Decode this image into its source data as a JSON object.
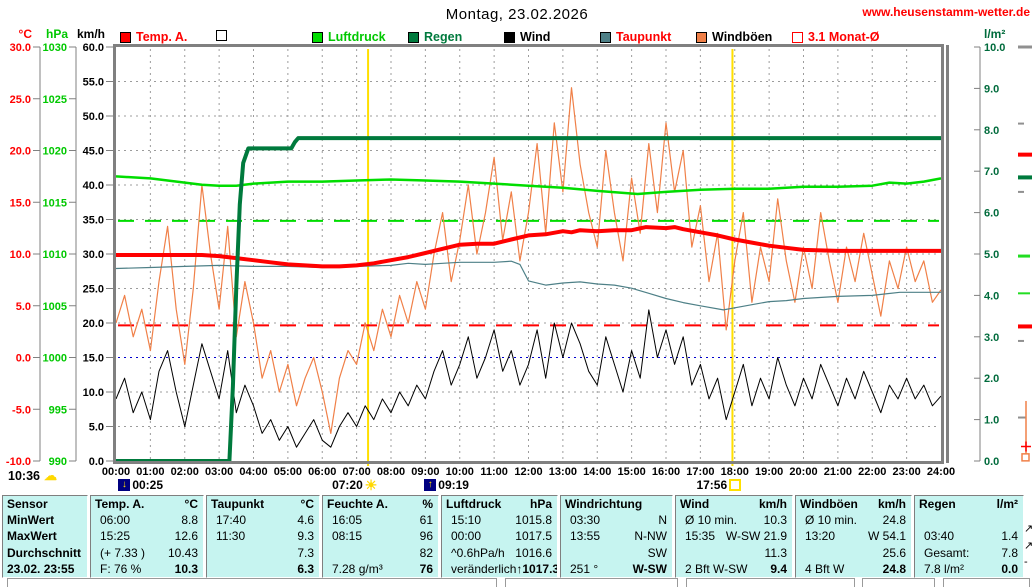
{
  "header": {
    "title": "Montag, 23.02.2026",
    "url": "www.heusenstamm-wetter.de"
  },
  "legend": [
    {
      "label": "Temp. A.",
      "swatch": "#ff0000",
      "swatch_border": "#000000",
      "text_color": "#ff0000"
    },
    {
      "label": "",
      "swatch": "#ffffff",
      "swatch_border": "#000000",
      "text_color": "#000000"
    },
    {
      "label": "Luftdruck",
      "swatch": "#00dd00",
      "swatch_border": "#000000",
      "text_color": "#00c800"
    },
    {
      "label": "Regen",
      "swatch": "#007a3d",
      "swatch_border": "#000000",
      "text_color": "#007a3d"
    },
    {
      "label": "Wind",
      "swatch": "#000000",
      "swatch_border": "#000000",
      "text_color": "#000000"
    },
    {
      "label": "Taupunkt",
      "swatch": "#4e8087",
      "swatch_border": "#000000",
      "text_color": "#ff0000"
    },
    {
      "label": "Windböen",
      "swatch": "#f08048",
      "swatch_border": "#000000",
      "text_color": "#000000"
    },
    {
      "label": "3.1 Monat-Ø",
      "swatch": "#ffffff",
      "swatch_border": "#ff0000",
      "text_color": "#ff0000"
    }
  ],
  "axes": {
    "temp": {
      "unit": "°C",
      "color": "#ff0000",
      "labels": [
        "30.0",
        "25.0",
        "20.0",
        "15.0",
        "10.0",
        "5.0",
        "0.0",
        "-5.0",
        "-10.0"
      ],
      "tick_values": [
        30,
        25,
        20,
        15,
        10,
        5,
        0,
        -5,
        -10
      ]
    },
    "hpa": {
      "unit": "hPa",
      "color": "#00c800",
      "labels": [
        "1030",
        "1025",
        "1020",
        "1015",
        "1010",
        "1005",
        "1000",
        "995",
        "990"
      ],
      "tick_values": [
        1030,
        1025,
        1020,
        1015,
        1010,
        1005,
        1000,
        995,
        990
      ]
    },
    "kmh": {
      "unit": "km/h",
      "color": "#000000",
      "labels": [
        "60.0",
        "55.0",
        "50.0",
        "45.0",
        "40.0",
        "35.0",
        "30.0",
        "25.0",
        "20.0",
        "15.0",
        "10.0",
        "5.0",
        "0.0"
      ],
      "tick_values": [
        60,
        55,
        50,
        45,
        40,
        35,
        30,
        25,
        20,
        15,
        10,
        5,
        0
      ]
    },
    "lpm": {
      "unit": "l/m²",
      "color": "#006b3c",
      "labels": [
        "10.0",
        "9.0",
        "8.0",
        "7.0",
        "6.0",
        "5.0",
        "4.0",
        "3.0",
        "2.0",
        "1.0",
        "0.0"
      ],
      "tick_values": [
        10,
        9,
        8,
        7,
        6,
        5,
        4,
        3,
        2,
        1,
        0
      ]
    },
    "x": {
      "labels": [
        "00:00",
        "01:00",
        "02:00",
        "03:00",
        "04:00",
        "05:00",
        "06:00",
        "07:00",
        "08:00",
        "09:00",
        "10:00",
        "11:00",
        "12:00",
        "13:00",
        "14:00",
        "15:00",
        "16:00",
        "17:00",
        "18:00",
        "19:00",
        "20:00",
        "21:00",
        "22:00",
        "23:00",
        "24:00"
      ]
    }
  },
  "chart_data": {
    "type": "line",
    "xlim": [
      0,
      24
    ],
    "grid": true,
    "series": [
      {
        "name": "Temp. A.",
        "axis": "temp",
        "color": "#ff0000",
        "width": 4,
        "x": [
          0,
          0.5,
          1,
          1.5,
          2,
          2.5,
          3,
          3.5,
          4,
          4.5,
          5,
          5.5,
          6,
          6.5,
          7,
          7.5,
          8,
          8.5,
          9,
          9.5,
          10,
          10.5,
          11,
          11.5,
          12,
          12.5,
          13,
          13.25,
          13.5,
          14,
          14.5,
          15,
          15.42,
          16,
          16.25,
          16.5,
          17,
          17.5,
          18,
          18.5,
          19,
          19.5,
          20,
          21,
          22,
          23,
          24
        ],
        "values": [
          9.9,
          9.9,
          9.9,
          9.9,
          9.9,
          9.9,
          9.8,
          9.6,
          9.4,
          9.2,
          9.0,
          8.9,
          8.8,
          8.8,
          8.9,
          9.1,
          9.4,
          9.7,
          10.1,
          10.5,
          10.9,
          11.0,
          11.0,
          11.4,
          11.8,
          11.9,
          12.2,
          12.1,
          12.3,
          12.2,
          12.3,
          12.3,
          12.6,
          12.5,
          12.6,
          12.4,
          12.1,
          11.8,
          11.4,
          11.1,
          10.8,
          10.6,
          10.4,
          10.3,
          10.3,
          10.3,
          10.3
        ]
      },
      {
        "name": "Taupunkt",
        "axis": "temp",
        "color": "#4e8087",
        "width": 1.2,
        "x": [
          0,
          1,
          2,
          3,
          4,
          5,
          6,
          7,
          8,
          8.5,
          9,
          9.5,
          10,
          10.5,
          11,
          11.5,
          11.75,
          12,
          12.5,
          13,
          13.5,
          14,
          14.5,
          15,
          15.5,
          16,
          16.5,
          17,
          17.67,
          18,
          18.5,
          19,
          19.5,
          20,
          21,
          22,
          22.8,
          24
        ],
        "values": [
          8.6,
          8.7,
          8.8,
          8.9,
          8.8,
          8.8,
          8.7,
          8.8,
          8.9,
          9.1,
          9.0,
          9.1,
          9.2,
          9.2,
          9.2,
          9.3,
          9.0,
          7.4,
          7.0,
          7.2,
          7.3,
          7.1,
          7.0,
          6.7,
          6.2,
          5.7,
          5.3,
          5.0,
          4.6,
          4.8,
          5.1,
          5.4,
          5.5,
          5.7,
          5.9,
          6.0,
          6.3,
          6.3
        ]
      },
      {
        "name": "Luftdruck",
        "axis": "hpa",
        "color": "#00dd00",
        "width": 2.5,
        "x": [
          0,
          0.5,
          1,
          1.5,
          2,
          2.5,
          3,
          3.5,
          4,
          5,
          6,
          7,
          8,
          9,
          10,
          11,
          12,
          13,
          14,
          15.17,
          16,
          17,
          18,
          19,
          20,
          21,
          22,
          22.5,
          23,
          23.5,
          24
        ],
        "values": [
          1017.5,
          1017.4,
          1017.3,
          1017.1,
          1016.9,
          1016.7,
          1016.6,
          1016.6,
          1016.8,
          1017.0,
          1017.0,
          1017.1,
          1017.2,
          1017.1,
          1017.0,
          1016.8,
          1016.6,
          1016.4,
          1016.1,
          1015.8,
          1016.0,
          1016.2,
          1016.3,
          1016.3,
          1016.5,
          1016.5,
          1016.6,
          1016.9,
          1016.8,
          1017.0,
          1017.3
        ]
      },
      {
        "name": "Regen",
        "axis": "lpm",
        "color": "#007a3d",
        "width": 4,
        "x": [
          0,
          3.3,
          3.4,
          3.5,
          3.6,
          3.7,
          3.85,
          5.1,
          5.2,
          5.3,
          24
        ],
        "values": [
          0,
          0,
          1.8,
          4.2,
          6.2,
          7.2,
          7.55,
          7.55,
          7.7,
          7.8,
          7.8
        ]
      },
      {
        "name": "Wind",
        "axis": "kmh",
        "color": "#000000",
        "width": 1,
        "step": 0.25,
        "values": [
          9,
          12,
          7,
          10,
          6,
          13,
          16,
          10,
          5,
          11,
          17,
          13,
          9,
          16,
          7,
          11,
          8,
          4,
          6,
          3,
          5,
          2,
          4,
          6,
          3,
          2,
          5,
          7,
          5,
          8,
          6,
          9,
          7,
          10,
          8,
          11,
          9,
          13,
          16,
          11,
          14,
          18,
          12,
          15,
          19,
          13,
          16,
          11,
          14,
          19,
          12,
          20,
          15,
          20,
          17,
          13,
          11,
          18,
          14,
          10,
          16,
          12,
          21.9,
          15,
          19,
          14,
          18,
          11,
          14,
          9,
          12,
          6,
          10,
          14,
          8,
          12,
          9,
          15,
          11,
          8,
          12,
          9,
          14,
          11,
          8,
          12,
          9,
          13,
          10,
          7,
          11,
          9,
          12,
          9,
          11,
          8,
          9.4
        ]
      },
      {
        "name": "Windböen",
        "axis": "kmh",
        "color": "#f08048",
        "width": 1.2,
        "step": 0.25,
        "values": [
          20,
          24,
          18,
          22,
          16,
          26,
          34,
          22,
          14,
          25,
          40,
          30,
          22,
          34,
          18,
          26,
          20,
          12,
          16,
          10,
          14,
          8,
          12,
          15,
          10,
          4,
          12,
          16,
          14,
          20,
          16,
          22,
          18,
          24,
          20,
          26,
          22,
          30,
          36,
          26,
          32,
          40,
          30,
          36,
          44,
          32,
          39,
          29,
          36,
          46,
          33,
          49,
          39,
          54.1,
          43,
          36,
          31,
          45,
          36,
          29,
          41,
          33,
          46,
          36,
          49,
          39,
          45,
          31,
          37,
          26,
          33,
          19,
          29,
          36,
          23,
          31,
          26,
          38,
          29,
          23,
          31,
          25,
          36,
          29,
          23,
          31,
          26,
          33,
          27,
          21,
          29,
          25,
          31,
          26,
          29,
          23,
          24.8
        ]
      }
    ],
    "reference_lines": [
      {
        "name": "monat-avg-temp",
        "axis": "temp",
        "value": 3.1,
        "color": "#ff0000",
        "dash": "16 11",
        "width": 2
      },
      {
        "name": "monat-avg-luftdruck",
        "axis": "hpa",
        "value": 1013.2,
        "color": "#00dd00",
        "dash": "16 11",
        "width": 2
      },
      {
        "name": "frost-line-0c",
        "axis": "temp",
        "value": 0,
        "color": "#0000cc",
        "dash": "2 4",
        "width": 1
      }
    ],
    "sun_lines": [
      {
        "x": 7.333
      },
      {
        "x": 17.933
      }
    ],
    "right_markers": [
      {
        "type": "rect",
        "v": 10.0,
        "color": "#909090",
        "w": 14,
        "h": 3
      },
      {
        "type": "rect",
        "v": 8.15,
        "color": "#909090",
        "w": 6,
        "h": 2
      },
      {
        "type": "rect",
        "v": 7.4,
        "color": "#ff0000",
        "w": 14,
        "h": 4
      },
      {
        "type": "rect",
        "v": 6.85,
        "color": "#007a3d",
        "w": 14,
        "h": 4
      },
      {
        "type": "rect",
        "v": 6.5,
        "color": "#909090",
        "w": 6,
        "h": 2
      },
      {
        "type": "rect",
        "v": 4.95,
        "color": "#22dd22",
        "w": 12,
        "h": 3
      },
      {
        "type": "rect",
        "v": 4.05,
        "color": "#22dd22",
        "w": 12,
        "h": 2
      },
      {
        "type": "rect",
        "v": 3.25,
        "color": "#ff0000",
        "w": 14,
        "h": 4
      },
      {
        "type": "rect",
        "v": 2.9,
        "color": "#909090",
        "w": 6,
        "h": 2
      },
      {
        "type": "rect",
        "v": 1.05,
        "color": "#909090",
        "w": 8,
        "h": 2
      },
      {
        "type": "vline",
        "from": 0.05,
        "to": 1.45,
        "color": "#f08048"
      },
      {
        "type": "plus",
        "v": 0.35,
        "color": "#ff0000"
      },
      {
        "type": "square",
        "v": 0.1,
        "color": "#f08048"
      }
    ]
  },
  "day_markers": {
    "sunshine": {
      "time": "10:36",
      "icon": "sun-cloud"
    },
    "events": [
      {
        "time": "00:25",
        "icon": "moon-down",
        "hour": 0.417,
        "icon_first": true
      },
      {
        "time": "07:20",
        "icon": "sun",
        "hour": 7.333,
        "icon_first": false
      },
      {
        "time": "09:19",
        "icon": "moon-up",
        "hour": 9.317,
        "icon_first": true
      },
      {
        "time": "17:56",
        "icon": "sun-square",
        "hour": 17.933,
        "icon_first": false
      }
    ]
  },
  "table": {
    "row_labels": [
      "Sensor",
      "MinWert",
      "MaxWert",
      "Durchschnitt",
      "23.02. 23:55"
    ],
    "columns": [
      {
        "name": "Temp. A.",
        "unit": "°C",
        "cells": [
          [
            "06:00",
            "8.8"
          ],
          [
            "15:25",
            "12.6"
          ],
          [
            "(+ 7.33 )",
            "10.43"
          ],
          [
            "F: 76 %",
            "10.3"
          ]
        ]
      },
      {
        "name": "Taupunkt",
        "unit": "°C",
        "cells": [
          [
            "17:40",
            "4.6"
          ],
          [
            "11:30",
            "9.3"
          ],
          [
            "",
            "7.3"
          ],
          [
            "",
            "6.3"
          ]
        ]
      },
      {
        "name": "Feuchte A.",
        "unit": "%",
        "cells": [
          [
            "16:05",
            "61"
          ],
          [
            "08:15",
            "96"
          ],
          [
            "",
            "82"
          ],
          [
            "7.28 g/m³",
            "76"
          ]
        ]
      },
      {
        "name": "Luftdruck",
        "unit": "hPa",
        "cells": [
          [
            "15:10",
            "1015.8"
          ],
          [
            "00:00",
            "1017.5"
          ],
          [
            "^0.6hPa/h",
            "1016.6"
          ],
          [
            "veränderlich",
            "↑1017.3"
          ]
        ]
      },
      {
        "name": "Windrichtung",
        "unit": "",
        "cells": [
          [
            "03:30",
            "N"
          ],
          [
            "13:55",
            "N-NW"
          ],
          [
            "",
            "SW"
          ],
          [
            "251 °",
            "W-SW"
          ]
        ]
      },
      {
        "name": "Wind",
        "unit": "km/h",
        "cells": [
          [
            "Ø 10 min.",
            "10.3"
          ],
          [
            "15:35",
            "W-SW 21.9"
          ],
          [
            "",
            "11.3"
          ],
          [
            "2 Bft W-SW",
            "9.4"
          ]
        ]
      },
      {
        "name": "Windböen",
        "unit": "km/h",
        "cells": [
          [
            "Ø 10 min.",
            "24.8"
          ],
          [
            "13:20",
            "W 54.1"
          ],
          [
            "",
            "25.6"
          ],
          [
            "4 Bft W",
            "24.8"
          ]
        ]
      },
      {
        "name": "Regen",
        "unit": "l/m²",
        "cells": [
          [
            "",
            ""
          ],
          [
            "03:40",
            "1.4"
          ],
          [
            "Gesamt:",
            "7.8"
          ],
          [
            "7.8 l/m²",
            "0.0"
          ]
        ]
      }
    ],
    "margin_marks": [
      "↗",
      "↗",
      "-"
    ]
  }
}
